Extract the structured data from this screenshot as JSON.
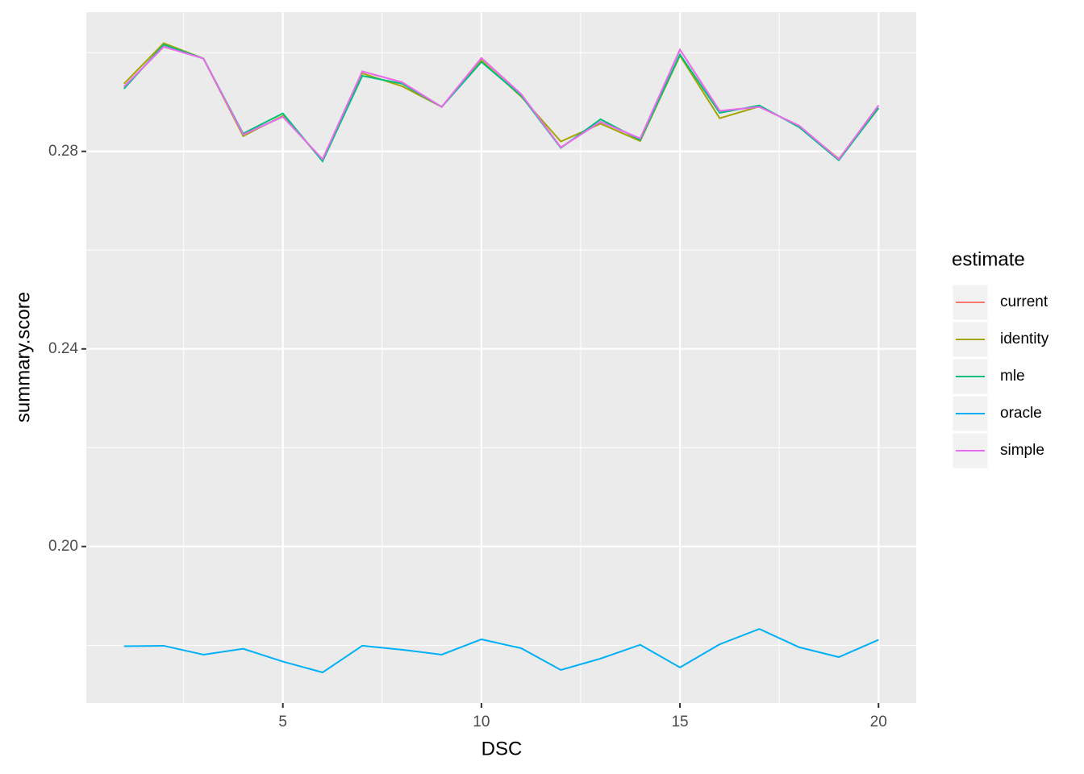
{
  "chart_data": {
    "type": "line",
    "x_label": "DSC",
    "y_label": "summary.score",
    "legend_title": "estimate",
    "legend_position": "right",
    "grid": true,
    "x": [
      1,
      2,
      3,
      4,
      5,
      6,
      7,
      8,
      9,
      10,
      11,
      12,
      13,
      14,
      15,
      16,
      17,
      18,
      19,
      20
    ],
    "xlim": [
      0.05,
      20.95
    ],
    "xticks": [
      5,
      10,
      15,
      20
    ],
    "x_minor_ticks": [
      2.5,
      7.5,
      12.5,
      17.5
    ],
    "ylim": [
      0.1683,
      0.3082
    ],
    "yticks": [
      {
        "value": 0.2,
        "label": "0.20"
      },
      {
        "value": 0.24,
        "label": "0.24"
      },
      {
        "value": 0.28,
        "label": "0.28"
      }
    ],
    "y_minor_ticks": [
      0.18,
      0.22,
      0.26,
      0.3
    ],
    "series": [
      {
        "name": "current",
        "color": "#F8766D",
        "values": [
          0.2931,
          0.3012,
          0.2988,
          0.2834,
          0.287,
          0.2784,
          0.2962,
          0.294,
          0.289,
          0.2989,
          0.2916,
          0.2808,
          0.286,
          0.2826,
          0.3006,
          0.2882,
          0.289,
          0.2852,
          0.2784,
          0.2893
        ]
      },
      {
        "name": "identity",
        "color": "#A3A500",
        "values": [
          0.2937,
          0.3019,
          0.2988,
          0.2831,
          0.2872,
          0.2782,
          0.2958,
          0.2932,
          0.289,
          0.2984,
          0.2911,
          0.282,
          0.2856,
          0.2821,
          0.2994,
          0.2867,
          0.2891,
          0.2851,
          0.2785,
          0.2887
        ]
      },
      {
        "name": "mle",
        "color": "#00BF7D",
        "values": [
          0.2927,
          0.3016,
          0.2988,
          0.2836,
          0.2877,
          0.278,
          0.2953,
          0.2937,
          0.289,
          0.2981,
          0.2913,
          0.2807,
          0.2865,
          0.2823,
          0.2996,
          0.2878,
          0.2893,
          0.2849,
          0.2782,
          0.2888
        ]
      },
      {
        "name": "oracle",
        "color": "#00B0F6",
        "values": [
          0.1798,
          0.1799,
          0.1781,
          0.1793,
          0.1767,
          0.1745,
          0.1799,
          0.1791,
          0.1781,
          0.1812,
          0.1794,
          0.175,
          0.1773,
          0.1801,
          0.1755,
          0.1802,
          0.1833,
          0.1796,
          0.1776,
          0.1811
        ]
      },
      {
        "name": "simple",
        "color": "#E76BF3",
        "values": [
          0.2931,
          0.3012,
          0.2988,
          0.2834,
          0.287,
          0.2784,
          0.2962,
          0.294,
          0.289,
          0.2989,
          0.2916,
          0.2808,
          0.286,
          0.2826,
          0.3006,
          0.2882,
          0.289,
          0.2852,
          0.2784,
          0.2893
        ]
      }
    ]
  }
}
